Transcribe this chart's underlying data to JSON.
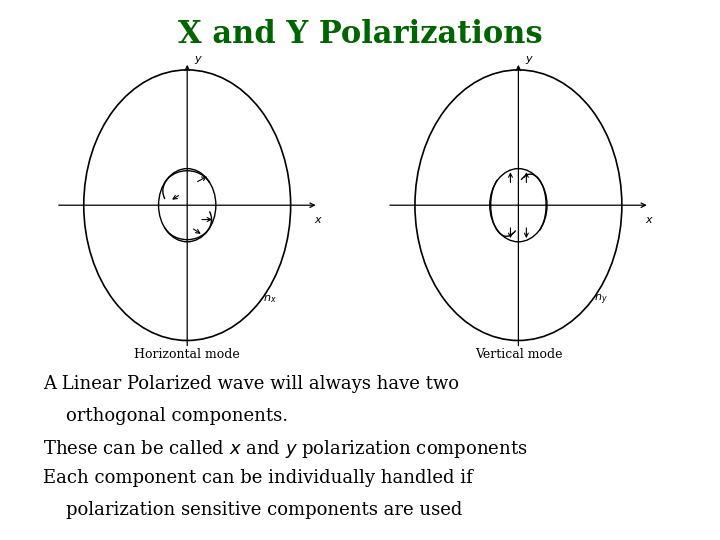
{
  "title": "X and Y Polarizations",
  "title_color": "#006400",
  "title_fontsize": 22,
  "bg_color": "#ffffff",
  "text_lines": [
    "A Linear Polarized wave will always have two",
    "    orthogonal components.",
    "These can be called $x$ and $y$ polarization components",
    "Each component can be individually handled if",
    "    polarization sensitive components are used"
  ],
  "text_fontsize": 13,
  "left_label": "Horizontal mode",
  "right_label": "Vertical mode",
  "left_n_label": "$n_x$",
  "right_n_label": "$n_y$"
}
